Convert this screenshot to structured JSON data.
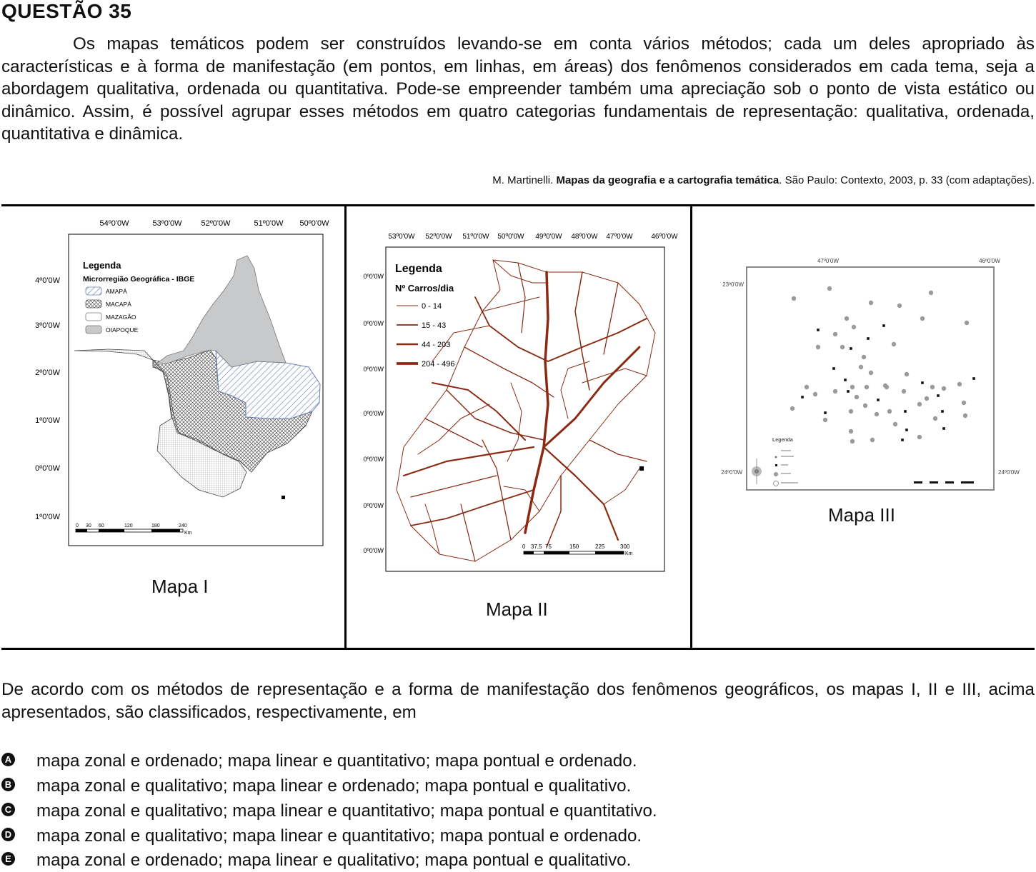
{
  "question": {
    "title": "QUESTÃO 35",
    "paragraph": "Os mapas temáticos podem ser construídos levando-se em conta vários métodos; cada um deles apropriado às características e à forma de manifestação (em pontos, em linhas, em áreas) dos fenômenos considerados em cada tema, seja a abordagem qualitativa, ordenada ou quantitativa. Pode-se empreender também uma apreciação sob o ponto de vista estático ou dinâmico. Assim, é possível agrupar esses métodos em quatro categorias fundamentais de representação: qualitativa, ordenada, quantitativa e dinâmica.",
    "citation": {
      "author": "M. Martinelli. ",
      "work": "Mapas da geografia e a cartografia temática",
      "rest": ". São Paulo: Contexto, 2003, p. 33 (com adaptações)."
    },
    "prompt": "De acordo com os métodos de representação e a forma de manifestação dos fenômenos geográficos, os mapas I, II e III, acima apresentados, são classificados, respectivamente, em",
    "options": [
      {
        "letter": "A",
        "text": "mapa zonal e ordenado; mapa linear e quantitativo; mapa pontual e ordenado."
      },
      {
        "letter": "B",
        "text": "mapa zonal e qualitativo; mapa linear e ordenado; mapa pontual e qualitativo."
      },
      {
        "letter": "C",
        "text": "mapa zonal e qualitativo; mapa linear e quantitativo; mapa pontual e quantitativo."
      },
      {
        "letter": "D",
        "text": "mapa zonal e qualitativo; mapa linear e quantitativo; mapa pontual e ordenado."
      },
      {
        "letter": "E",
        "text": "mapa zonal e ordenado; mapa linear e qualitativo; mapa pontual e qualitativo."
      }
    ]
  },
  "maps": {
    "map1": {
      "caption": "Mapa I",
      "top_ticks": [
        "54º0'0W",
        "53º0'0W",
        "52º0'0W",
        "51º0'0W",
        "50º0'0W"
      ],
      "left_ticks": [
        "4º0'0W",
        "3º0'0W",
        "2º0'0W",
        "1º0'0W",
        "0º0'0W",
        "1º0'0W"
      ],
      "legend_title": "Legenda",
      "legend_subtitle": "Microrregião Geográfica - IBGE",
      "legend_items": [
        "AMAPÁ",
        "MACAPÁ",
        "MAZAGÃO",
        "OIAPOQUE"
      ],
      "scale_labels": [
        "0",
        "30",
        "60",
        "120",
        "180",
        "240"
      ],
      "scale_unit": "Km"
    },
    "map2": {
      "caption": "Mapa II",
      "top_ticks": [
        "53º0'0W",
        "52º0'0W",
        "51º0'0W",
        "50º0'0W",
        "49º0'0W",
        "48º0'0W",
        "47º0'0W",
        "46º0'0W"
      ],
      "left_ticks": [
        "0º0'0W",
        "0º0'0W",
        "0º0'0W",
        "0º0'0W",
        "0º0'0W",
        "0º0'0W",
        "0º0'0W"
      ],
      "legend_title": "Legenda",
      "legend_subtitle": "Nº Carros/dia",
      "legend_items": [
        "0 - 14",
        "15 - 43",
        "44 - 203",
        "204 - 496"
      ],
      "scale_labels": [
        "0",
        "37,5",
        "75",
        "150",
        "225",
        "300"
      ],
      "scale_unit": "Km",
      "road_color": "#8b2a12"
    },
    "map3": {
      "caption": "Mapa III",
      "top_ticks": [
        "47º0'0W",
        "46º0'0W"
      ],
      "left_ticks": [
        "23º0'0W",
        "24º0'0W"
      ],
      "right_tick": "24º0'0W",
      "legend_title": "Legenda"
    }
  }
}
